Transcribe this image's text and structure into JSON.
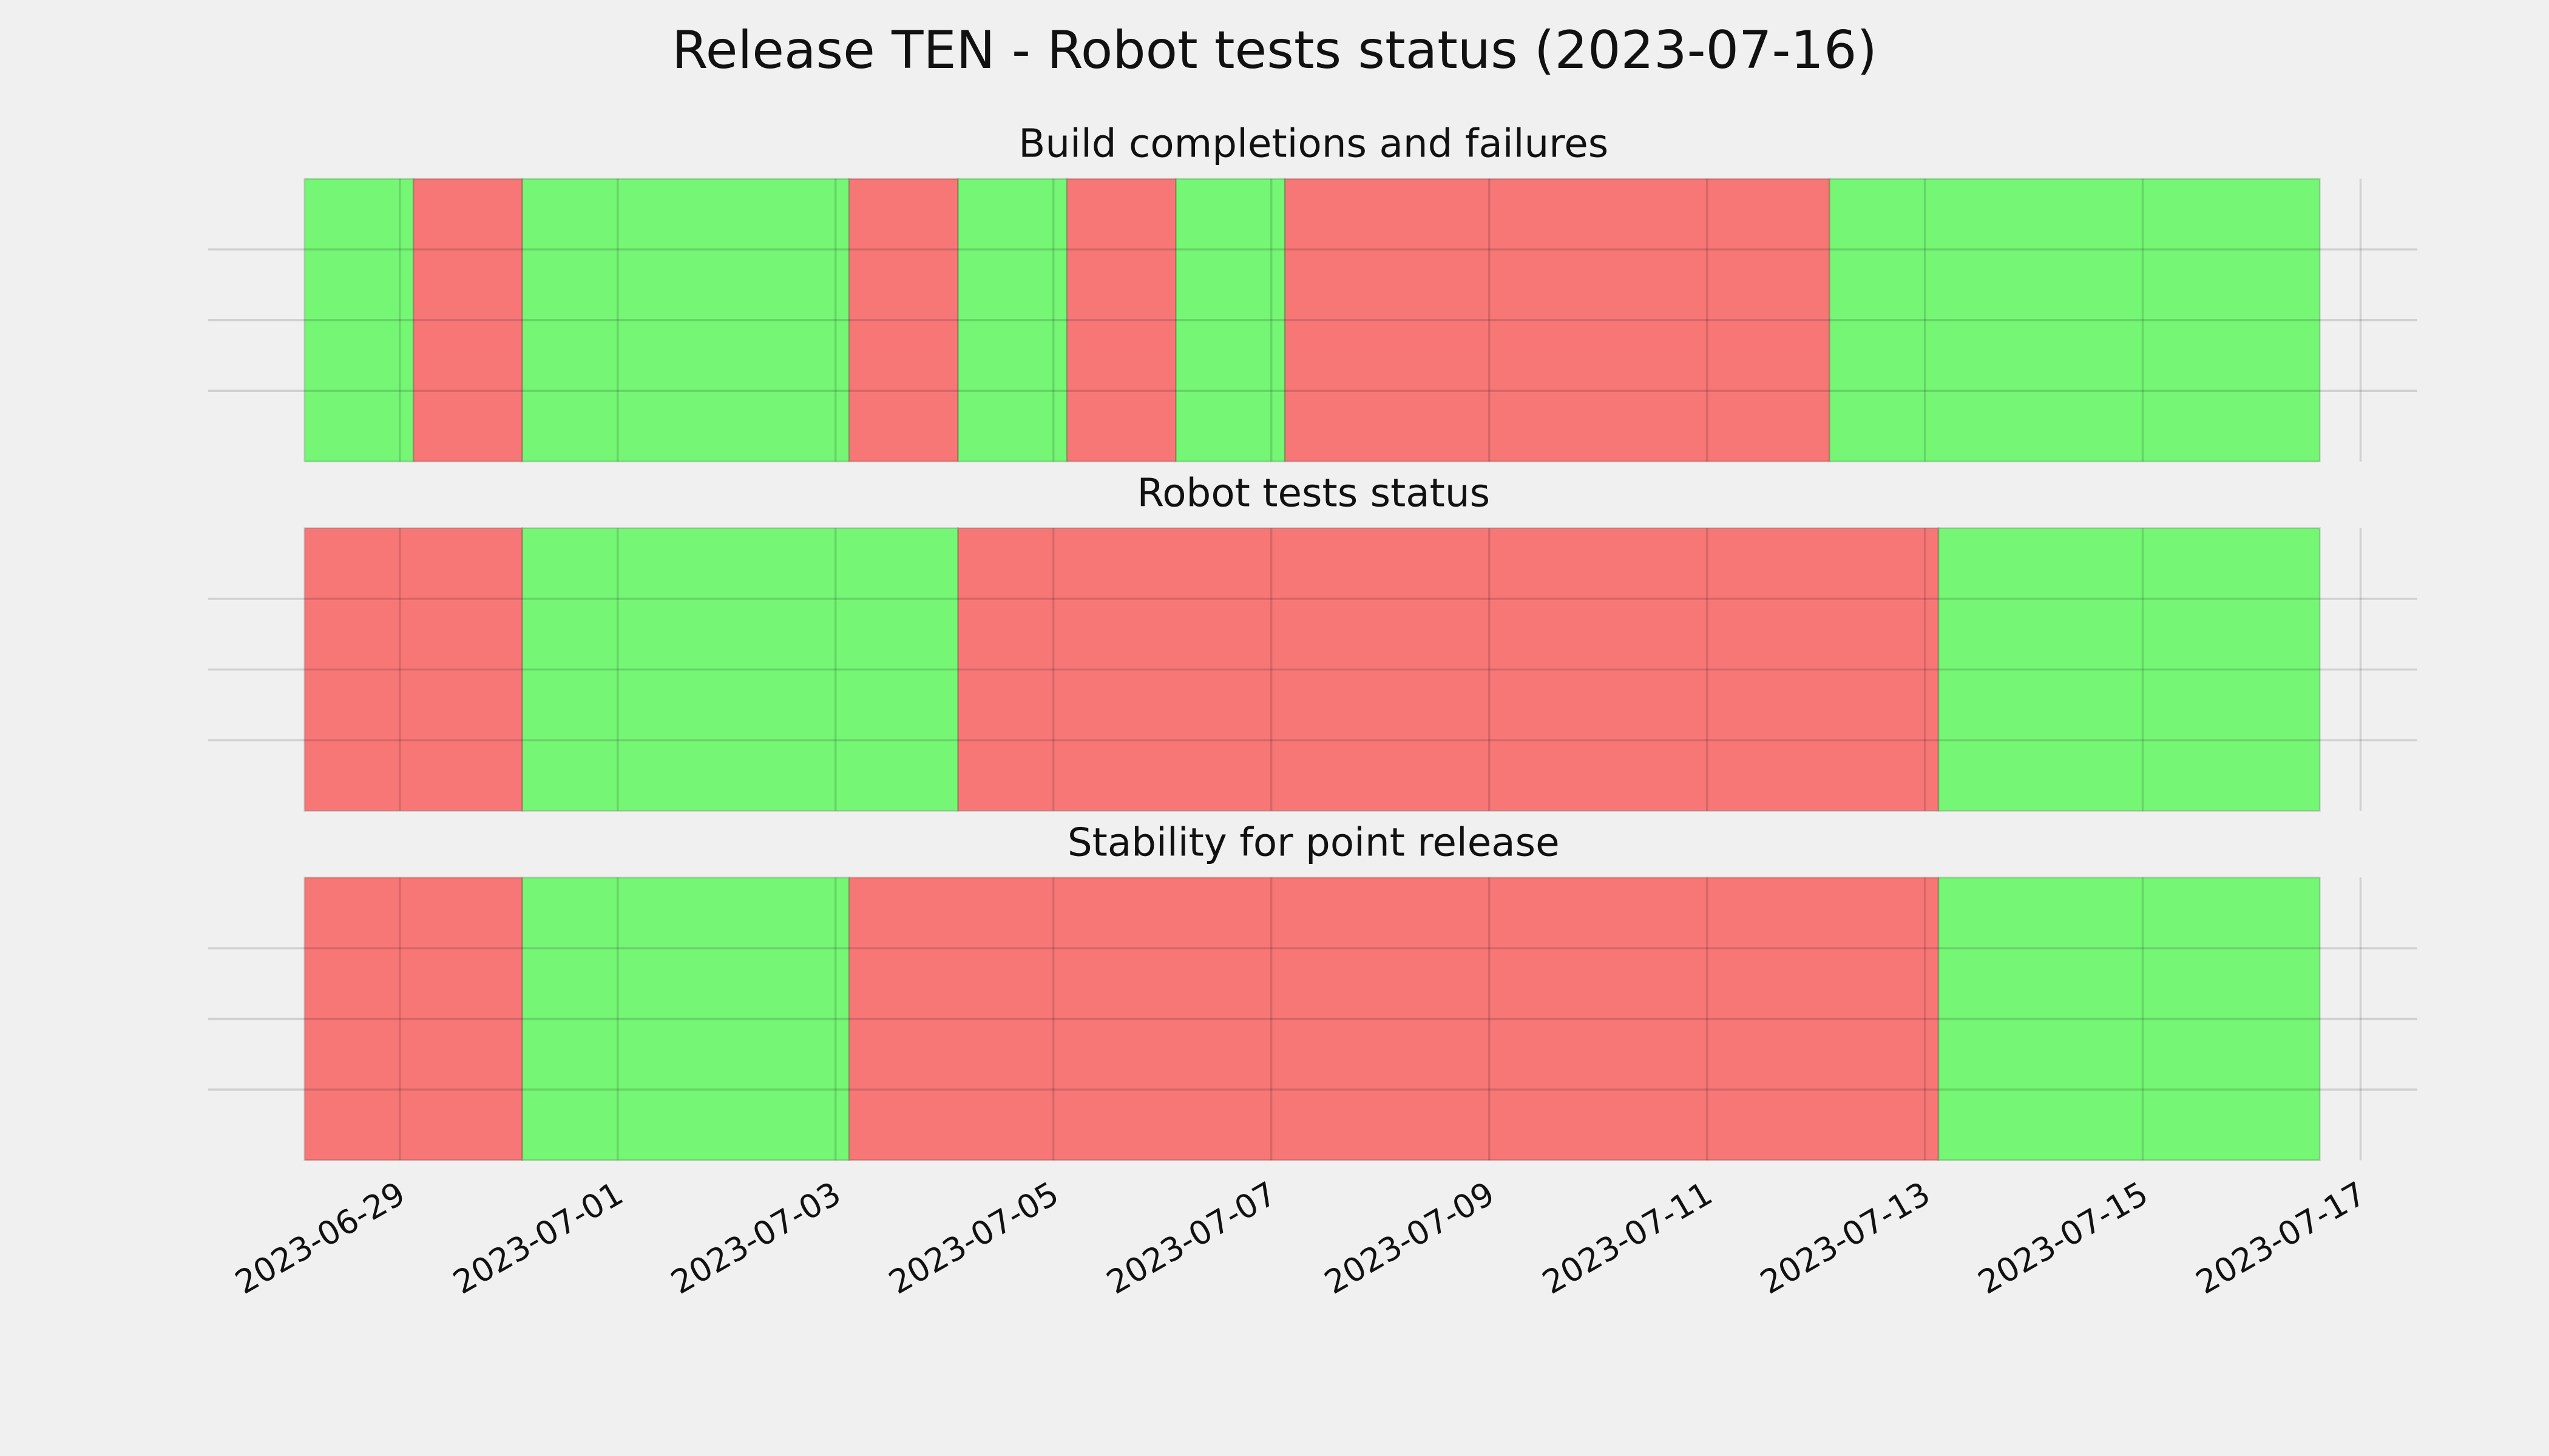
{
  "title": "Release TEN - Robot tests status (2023-07-16)",
  "chart_data": [
    {
      "type": "timeline",
      "title": "Build completions and failures",
      "x": [
        "2023-06-28T03:00",
        "2023-06-29T03:00",
        "2023-06-30T03:00",
        "2023-07-03T03:00",
        "2023-07-04T03:00",
        "2023-07-05T03:00",
        "2023-07-06T03:00",
        "2023-07-07T03:00",
        "2023-07-12T03:00",
        "2023-07-16T15:00"
      ],
      "colors": [
        "#75f675",
        "#f77777",
        "#75f675",
        "#f77777",
        "#75f675",
        "#f77777",
        "#75f675",
        "#f77777",
        "#75f675"
      ],
      "xlim": [
        "2023-06-27T05:45",
        "2023-07-17T12:30"
      ],
      "xticks": [
        "2023-06-29",
        "2023-07-01",
        "2023-07-03",
        "2023-07-05",
        "2023-07-07",
        "2023-07-09",
        "2023-07-11",
        "2023-07-13",
        "2023-07-15",
        "2023-07-17"
      ],
      "grid": true
    },
    {
      "type": "timeline",
      "title": "Robot tests status",
      "x": [
        "2023-06-28T03:00",
        "2023-06-30T03:00",
        "2023-07-04T03:00",
        "2023-07-13T03:00",
        "2023-07-16T15:00"
      ],
      "colors": [
        "#f77777",
        "#75f675",
        "#f77777",
        "#75f675"
      ],
      "xlim": [
        "2023-06-27T05:45",
        "2023-07-17T12:30"
      ],
      "xticks": [
        "2023-06-29",
        "2023-07-01",
        "2023-07-03",
        "2023-07-05",
        "2023-07-07",
        "2023-07-09",
        "2023-07-11",
        "2023-07-13",
        "2023-07-15",
        "2023-07-17"
      ],
      "grid": true
    },
    {
      "type": "timeline",
      "title": "Stability for point release",
      "x": [
        "2023-06-28T03:00",
        "2023-06-30T03:00",
        "2023-07-03T03:00",
        "2023-07-13T03:00",
        "2023-07-16T15:00"
      ],
      "colors": [
        "#f77777",
        "#75f675",
        "#f77777",
        "#75f675"
      ],
      "xlim": [
        "2023-06-27T05:45",
        "2023-07-17T12:30"
      ],
      "xticks": [
        "2023-06-29",
        "2023-07-01",
        "2023-07-03",
        "2023-07-05",
        "2023-07-07",
        "2023-07-09",
        "2023-07-11",
        "2023-07-13",
        "2023-07-15",
        "2023-07-17"
      ],
      "grid": true
    }
  ]
}
